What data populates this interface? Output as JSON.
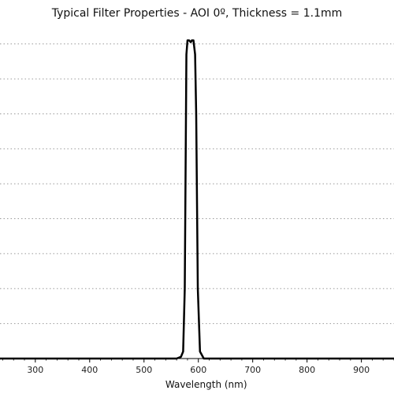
{
  "chart_data": {
    "type": "line",
    "title": "Typical Filter Properties - AOI 0º, Thickness = 1.1mm",
    "xlabel": "Wavelength (nm)",
    "ylabel": "",
    "xlim": [
      235,
      960
    ],
    "ylim": [
      0,
      94
    ],
    "x_ticks": [
      300,
      400,
      500,
      600,
      700,
      800,
      900
    ],
    "x_tick_labels": [
      "300",
      "400",
      "500",
      "600",
      "700",
      "800",
      "900"
    ],
    "y_gridlines": [
      10,
      20,
      30,
      40,
      50,
      60,
      70,
      80,
      90
    ],
    "grid": "horizontal dotted",
    "line_color": "#000000",
    "series": [
      {
        "x": [
          235,
          560,
          568,
          572,
          575,
          578,
          580,
          583,
          586,
          588,
          591,
          594,
          596,
          599,
          603,
          610,
          960
        ],
        "y": [
          0,
          0,
          0.5,
          2,
          20,
          87,
          91,
          91,
          90.5,
          91,
          91,
          87,
          70,
          20,
          2,
          0,
          0
        ]
      }
    ]
  }
}
